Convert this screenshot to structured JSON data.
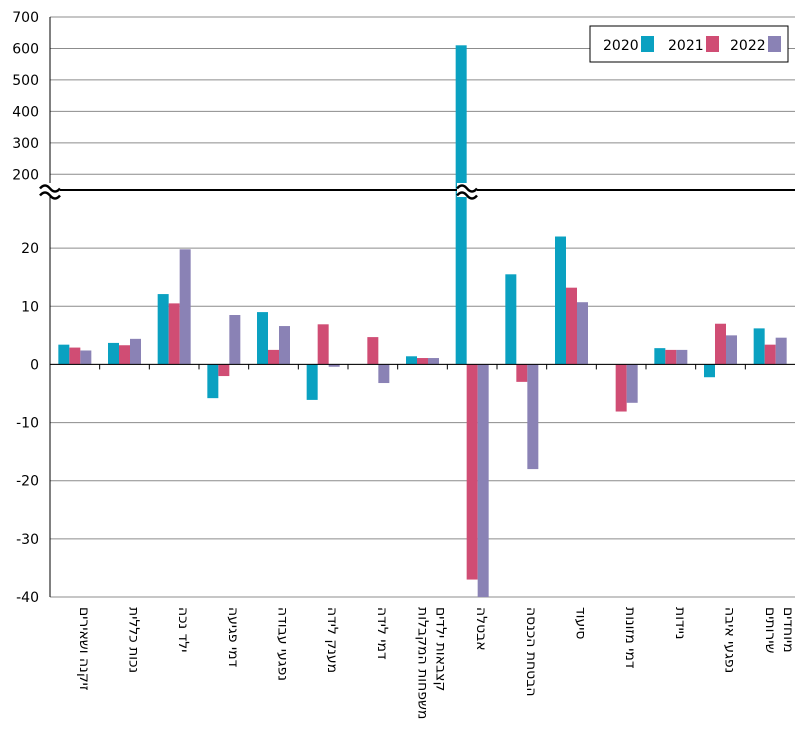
{
  "chart_data": {
    "type": "bar",
    "categories": [
      "זיקנה ושאירים",
      "נכות כללית",
      "ילד נכה",
      "דמי פגיעה",
      "נפגעי עבודה",
      "מענק לידה",
      "דמי לידה",
      "משפחות המקבלות קצבאות ילדים",
      "אבטלה",
      "הבטחת הכנסה",
      "סיעוד",
      "דמי מזונות",
      "ניידות",
      "נפגעי איבה",
      "שירותים מיוחדים"
    ],
    "series": [
      {
        "name": "2020",
        "color": "#0aa1c1",
        "values": [
          3.4,
          3.7,
          12.1,
          -5.8,
          9.0,
          -6.1,
          0,
          1.4,
          610,
          15.5,
          22.0,
          0,
          2.8,
          -2.2,
          6.2
        ]
      },
      {
        "name": "2021",
        "color": "#d04d74",
        "values": [
          2.9,
          3.3,
          10.5,
          -2.0,
          2.5,
          6.9,
          4.7,
          1.1,
          -37,
          -3.0,
          13.2,
          -8.1,
          2.5,
          7.0,
          3.4
        ]
      },
      {
        "name": "2022",
        "color": "#8a82b5",
        "values": [
          2.4,
          4.4,
          19.8,
          8.5,
          6.6,
          -0.4,
          -3.2,
          1.1,
          -40,
          -18.0,
          10.7,
          -6.6,
          2.5,
          5.0,
          4.6
        ]
      }
    ],
    "y_ticks_upper": [
      "700",
      "600",
      "500",
      "400",
      "300",
      "200"
    ],
    "y_ticks_lower": [
      "20",
      "10",
      "0",
      "-10",
      "-20",
      "-30",
      "-40"
    ],
    "ylim_upper": [
      150,
      700
    ],
    "ylim_lower": [
      -40,
      30
    ],
    "axis_break": true,
    "grid": true,
    "legend_position": "top-right"
  }
}
